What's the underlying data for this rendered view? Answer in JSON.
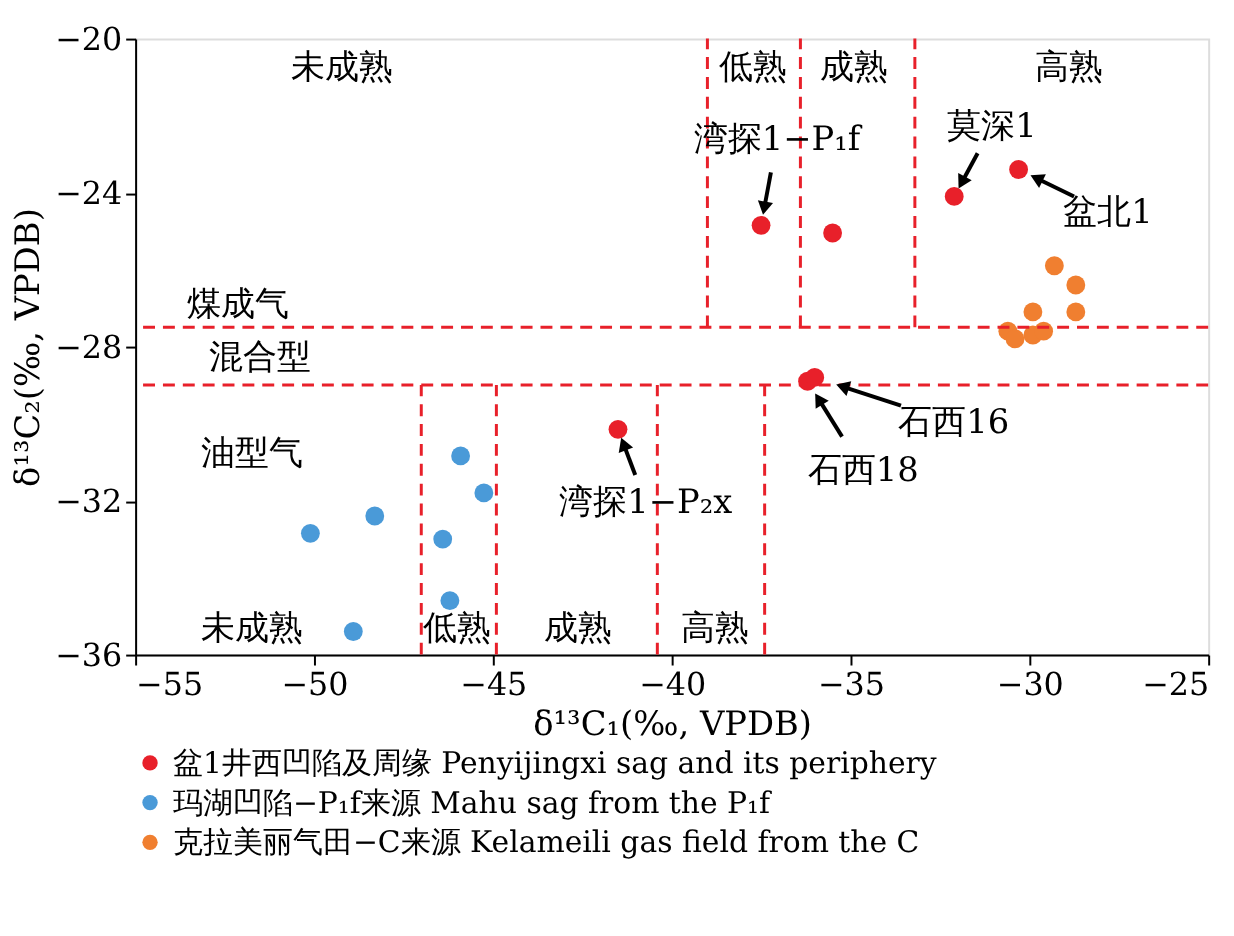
{
  "chart_data": {
    "type": "scatter",
    "xlabel": "δ¹³C₁(‰, VPDB)",
    "ylabel": "δ¹³C₂(‰, VPDB)",
    "xlim": [
      -55,
      -25
    ],
    "xticks": [
      -55,
      -50,
      -45,
      -40,
      -35,
      -30,
      -25
    ],
    "ylim": [
      -36,
      -20
    ],
    "yticks": [
      -36,
      -32,
      -28,
      -24,
      -20
    ],
    "grid": false,
    "legend": "bottom",
    "marker": "circle",
    "series": [
      {
        "name": "盆1井西凹陷及周缘 Penyijingxi sag and its periphery",
        "color": "#e8202a",
        "x": [
          -37.5,
          -35.5,
          -32.1,
          -30.3,
          -36.2,
          -36.0,
          -41.5
        ],
        "values": [
          -24.85,
          -25.05,
          -24.1,
          -23.4,
          -28.9,
          -28.8,
          -30.15
        ]
      },
      {
        "name": "玛湖凹陷−P₁f来源 Mahu sag from the P₁f",
        "color": "#4a9ad8",
        "x": [
          -45.9,
          -45.25,
          -48.3,
          -50.1,
          -46.4,
          -46.2,
          -48.9
        ],
        "values": [
          -30.84,
          -31.8,
          -32.4,
          -32.85,
          -33.0,
          -34.6,
          -35.4
        ]
      },
      {
        "name": "克拉美丽气田−C来源  Kelameili gas field from the C",
        "color": "#f07f30",
        "x": [
          -29.3,
          -28.7,
          -29.9,
          -28.7,
          -30.6,
          -30.4,
          -29.9,
          -29.6
        ],
        "values": [
          -25.9,
          -26.4,
          -27.1,
          -27.1,
          -27.6,
          -27.8,
          -27.7,
          -27.6
        ]
      },
      {
        "type": "line",
        "color": "#e8202a",
        "line_style": "dashed",
        "marker": "none",
        "x": [
          -39.0,
          -39.0
        ],
        "values": [
          -27.5,
          -20
        ]
      },
      {
        "type": "line",
        "color": "#e8202a",
        "line_style": "dashed",
        "marker": "none",
        "x": [
          -36.4,
          -36.4
        ],
        "values": [
          -27.5,
          -20
        ]
      },
      {
        "type": "line",
        "color": "#e8202a",
        "line_style": "dashed",
        "marker": "none",
        "x": [
          -33.2,
          -33.2
        ],
        "values": [
          -27.5,
          -20
        ]
      },
      {
        "type": "line",
        "color": "#e8202a",
        "line_style": "dashed",
        "marker": "none",
        "x": [
          -47.0,
          -47.0
        ],
        "values": [
          -36,
          -29
        ]
      },
      {
        "type": "line",
        "color": "#e8202a",
        "line_style": "dashed",
        "marker": "none",
        "x": [
          -44.9,
          -44.9
        ],
        "values": [
          -36,
          -29
        ]
      },
      {
        "type": "line",
        "color": "#e8202a",
        "line_style": "dashed",
        "marker": "none",
        "x": [
          -40.4,
          -40.4
        ],
        "values": [
          -36,
          -29
        ]
      },
      {
        "type": "line",
        "color": "#e8202a",
        "line_style": "dashed",
        "marker": "none",
        "x": [
          -37.4,
          -37.4
        ],
        "values": [
          -36,
          -29
        ]
      }
    ],
    "ref_lines": [
      {
        "axis": "y",
        "value": -27.5,
        "color": "#e8202a",
        "line_style": "dashed"
      },
      {
        "axis": "y",
        "value": -29.0,
        "color": "#e8202a",
        "line_style": "dashed"
      }
    ],
    "annotations": [
      "未成熟",
      "低熟",
      "成熟",
      "高熟",
      "煤成气",
      "混合型",
      "油型气",
      "未成熟",
      "低熟",
      "成熟",
      "高熟",
      {
        "text": "湾探1−P₁f",
        "x": -37.5,
        "y": -24.85
      },
      {
        "text": "莫深1",
        "x": -32.1,
        "y": -24.1
      },
      {
        "text": "盆北1",
        "x": -30.3,
        "y": -23.4
      },
      {
        "text": "石西16",
        "x": -36.0,
        "y": -28.8
      },
      {
        "text": "石西18",
        "x": -36.2,
        "y": -28.9
      },
      {
        "text": "湾探1−P₂x",
        "x": -41.5,
        "y": -30.15
      }
    ]
  }
}
